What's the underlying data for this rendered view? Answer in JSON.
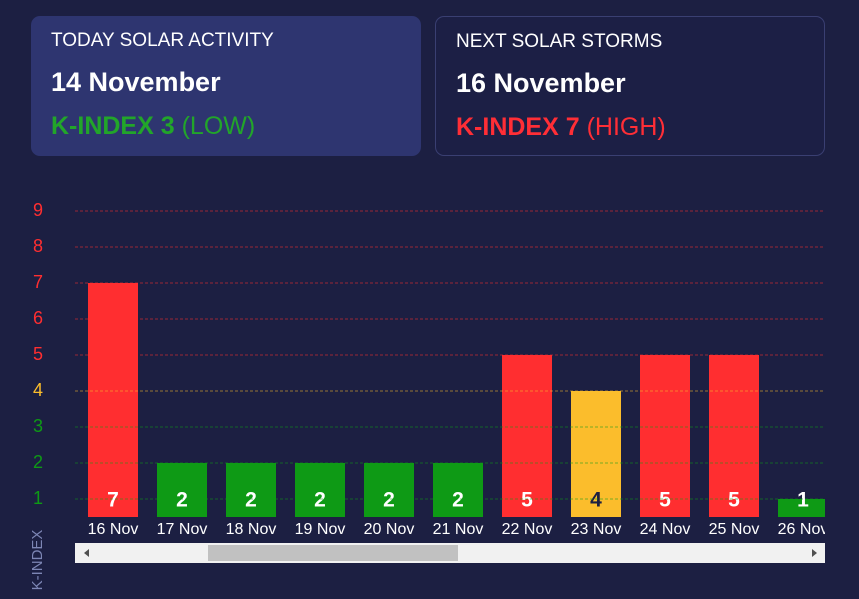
{
  "cards": [
    {
      "label": "TODAY SOLAR ACTIVITY",
      "date": "14 November",
      "kindex": "K-INDEX 3",
      "level": "(LOW)",
      "color": "#22a52a"
    },
    {
      "label": "NEXT SOLAR STORMS",
      "date": "16 November",
      "kindex": "K-INDEX 7",
      "level": "(HIGH)",
      "color": "#ff2e36"
    }
  ],
  "chart_data": {
    "type": "bar",
    "y_label": "K-INDEX",
    "categories": [
      "16 Nov",
      "17 Nov",
      "18 Nov",
      "19 Nov",
      "20 Nov",
      "21 Nov",
      "22 Nov",
      "23 Nov",
      "24 Nov",
      "25 Nov",
      "26 Nov"
    ],
    "values": [
      7,
      2,
      2,
      2,
      2,
      2,
      5,
      4,
      5,
      5,
      1
    ],
    "colors": [
      "#ff2e30",
      "#0e9a15",
      "#0e9a15",
      "#0e9a15",
      "#0e9a15",
      "#0e9a15",
      "#ff2e30",
      "#fbbd2c",
      "#ff2e30",
      "#ff2e30",
      "#0e9a15"
    ],
    "ylim": [
      0.5,
      9.5
    ],
    "yticks": [
      1,
      2,
      3,
      4,
      5,
      6,
      7,
      8,
      9
    ],
    "ytick_colors": [
      "#0e9a15",
      "#0e9a15",
      "#0e9a15",
      "#fbbd2c",
      "#ff2e30",
      "#ff2e30",
      "#ff2e30",
      "#ff2e30",
      "#ff2e30"
    ],
    "grid": true
  }
}
